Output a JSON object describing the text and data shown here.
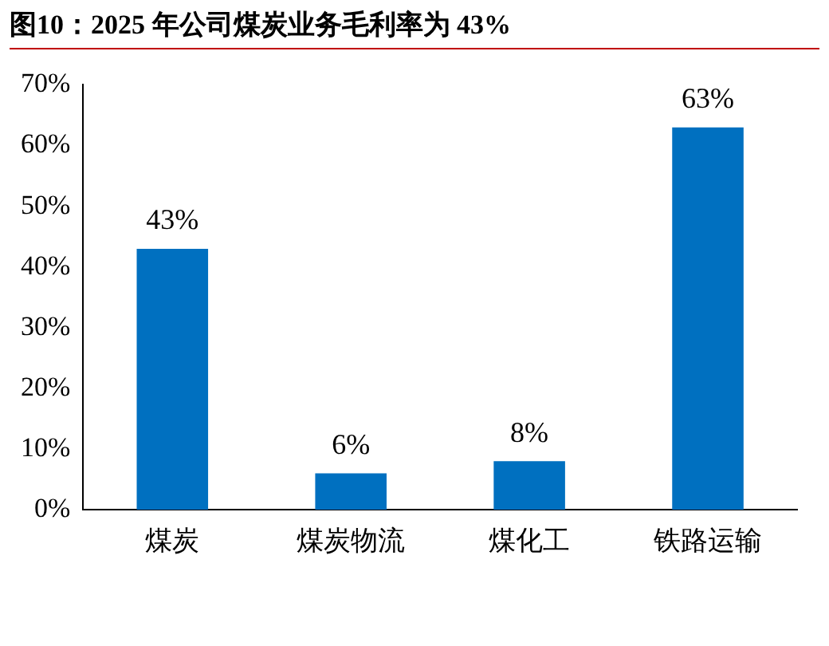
{
  "chart_data": {
    "type": "bar",
    "title": "图10：2025 年公司煤炭业务毛利率为 43%",
    "categories": [
      "煤炭",
      "煤炭物流",
      "煤化工",
      "铁路运输"
    ],
    "values": [
      43,
      6,
      8,
      63
    ],
    "color": "#0070c0",
    "value_labels": [
      "43%",
      "6%",
      "8%",
      "63%"
    ],
    "ylim": [
      0,
      70
    ],
    "yticks": [
      {
        "value": 0,
        "label": "0%"
      },
      {
        "value": 10,
        "label": "10%"
      },
      {
        "value": 20,
        "label": "20%"
      },
      {
        "value": 30,
        "label": "30%"
      },
      {
        "value": 40,
        "label": "40%"
      },
      {
        "value": 50,
        "label": "50%"
      },
      {
        "value": 60,
        "label": "60%"
      },
      {
        "value": 70,
        "label": "70%"
      }
    ],
    "grid": false,
    "legend": false
  }
}
